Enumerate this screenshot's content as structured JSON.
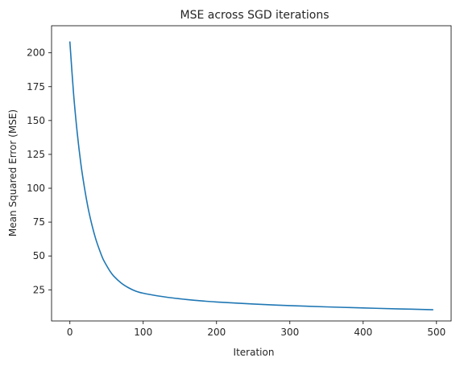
{
  "chart_data": {
    "type": "line",
    "title": "MSE across SGD iterations",
    "xlabel": "Iteration",
    "ylabel": "Mean Squared Error (MSE)",
    "xlim": [
      -25,
      520
    ],
    "ylim": [
      2,
      220
    ],
    "xticks": [
      0,
      100,
      200,
      300,
      400,
      500
    ],
    "yticks": [
      25,
      50,
      75,
      100,
      125,
      150,
      175,
      200
    ],
    "grid": false,
    "series": [
      {
        "color": "#1f77b4",
        "x": [
          0,
          5,
          10,
          15,
          20,
          25,
          30,
          35,
          40,
          45,
          50,
          55,
          60,
          70,
          80,
          90,
          100,
          120,
          140,
          160,
          180,
          200,
          250,
          300,
          350,
          400,
          450,
          495
        ],
        "y": [
          208,
          170,
          141,
          118,
          100,
          85,
          73,
          63,
          55,
          48,
          43,
          38.5,
          35,
          30,
          26.5,
          24,
          22.5,
          20.5,
          19,
          17.8,
          16.8,
          16,
          14.5,
          13.3,
          12.4,
          11.6,
          10.9,
          10.3
        ]
      }
    ]
  }
}
